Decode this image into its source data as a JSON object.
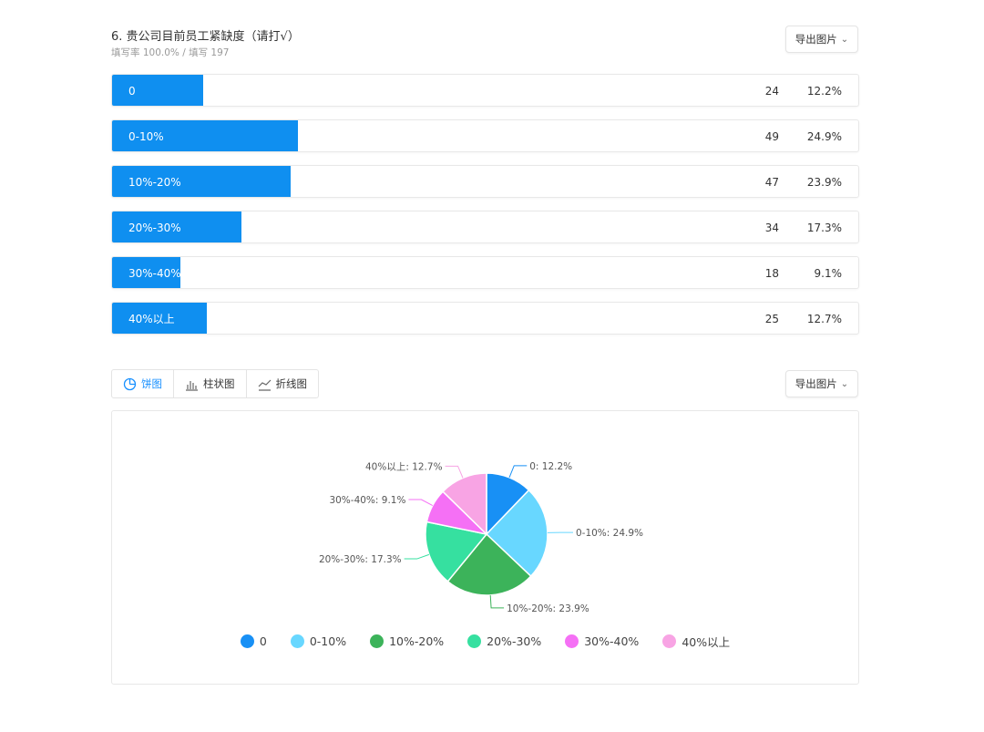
{
  "question": {
    "title": "6. 贵公司目前员工紧缺度（请打√）",
    "fill_rate": "填写率 100.0% / 填写 197"
  },
  "export_label": "导出图片",
  "options": [
    {
      "label": "0",
      "count": "24",
      "percent": "12.2%",
      "value": 12.2
    },
    {
      "label": "0-10%",
      "count": "49",
      "percent": "24.9%",
      "value": 24.9
    },
    {
      "label": "10%-20%",
      "count": "47",
      "percent": "23.9%",
      "value": 23.9
    },
    {
      "label": "20%-30%",
      "count": "34",
      "percent": "17.3%",
      "value": 17.3
    },
    {
      "label": "30%-40%",
      "count": "18",
      "percent": "9.1%",
      "value": 9.1
    },
    {
      "label": "40%以上",
      "count": "25",
      "percent": "12.7%",
      "value": 12.7
    }
  ],
  "bar_color": "#0f8ff0",
  "tabs": [
    {
      "label": "饼图",
      "icon": "pie-chart-icon",
      "active": true
    },
    {
      "label": "柱状图",
      "icon": "bar-chart-icon",
      "active": false
    },
    {
      "label": "折线图",
      "icon": "line-chart-icon",
      "active": false
    }
  ],
  "chart_data": {
    "type": "pie",
    "categories": [
      "0",
      "0-10%",
      "10%-20%",
      "20%-30%",
      "30%-40%",
      "40%以上"
    ],
    "values": [
      12.2,
      24.9,
      23.9,
      17.3,
      9.1,
      12.7
    ],
    "counts": [
      24,
      49,
      47,
      34,
      18,
      25
    ],
    "labels": [
      "0: 12.2%",
      "0-10%: 24.9%",
      "10%-20%: 23.9%",
      "20%-30%: 17.3%",
      "30%-40%: 9.1%",
      "40%以上: 12.7%"
    ],
    "colors": [
      "#1890f5",
      "#68d7ff",
      "#3cb35a",
      "#36e0a0",
      "#f570f5",
      "#f8a4e4"
    ],
    "legend_placement": "bottom"
  }
}
